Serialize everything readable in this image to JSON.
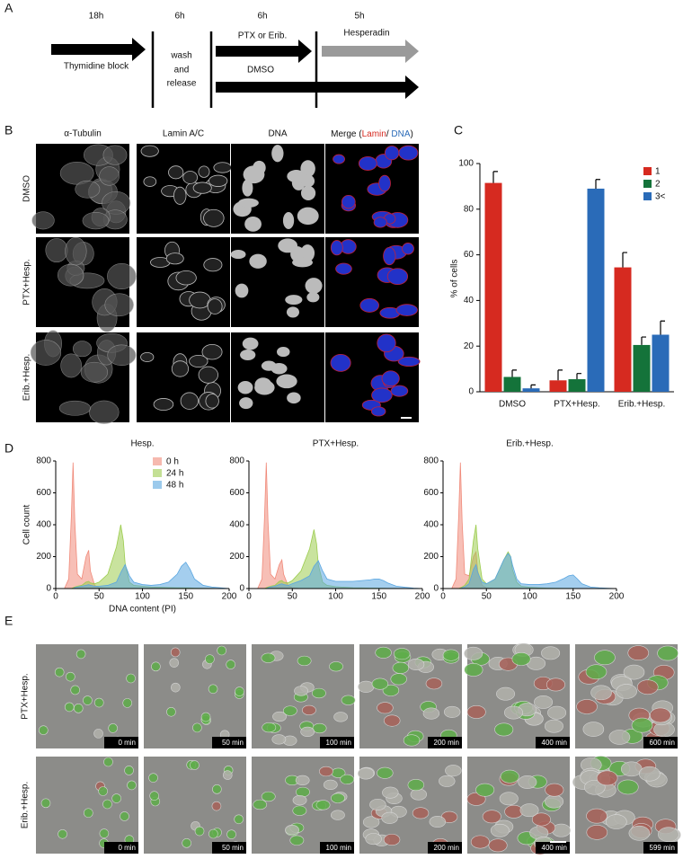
{
  "panel_labels": [
    "A",
    "B",
    "C",
    "D",
    "E"
  ],
  "timeline": {
    "durations": [
      "18h",
      "6h",
      "6h",
      "5h"
    ],
    "thymidine": "Thymidine block",
    "wash": [
      "wash",
      "and",
      "release"
    ],
    "treatment": "PTX or Erib.",
    "hesperadin": "Hesperadin",
    "control": "DMSO"
  },
  "microscopy": {
    "columns": [
      "α-Tubulin",
      "Lamin A/C",
      "DNA"
    ],
    "merge": [
      "Merge (",
      "Lamin",
      "/ ",
      "DNA",
      ")"
    ],
    "rows": [
      "DMSO",
      "PTX+Hesp.",
      "Erib.+Hesp."
    ]
  },
  "time_lapse": {
    "rows": [
      "PTX+Hesp.",
      "Erib.+Hesp."
    ],
    "times": [
      [
        "0 min",
        "50 min",
        "100 min",
        "200 min",
        "400 min",
        "600 min"
      ],
      [
        "0 min",
        "50 min",
        "100 min",
        "200 min",
        "400 min",
        "599 min"
      ]
    ]
  },
  "chart_data": [
    {
      "type": "bar",
      "categories": [
        "DMSO",
        "PTX+Hesp.",
        "Erib.+Hesp."
      ],
      "ylabel": "% of cells",
      "ylim": [
        0,
        100
      ],
      "yticks": [
        0,
        20,
        40,
        60,
        80,
        100
      ],
      "legend": "upper right",
      "series": [
        {
          "name": "1",
          "color": "#d62a20",
          "values": [
            91.5,
            5,
            54.5
          ],
          "errors": [
            5,
            4.5,
            6.5
          ]
        },
        {
          "name": "2",
          "color": "#14733a",
          "values": [
            6.5,
            5.5,
            20.5
          ],
          "errors": [
            3,
            2.5,
            3.5
          ]
        },
        {
          "name": "3<",
          "color": "#2a6bb8",
          "values": [
            1.5,
            89,
            25
          ],
          "errors": [
            1.5,
            4,
            6
          ]
        }
      ]
    },
    {
      "type": "area",
      "title": "Hesp.",
      "xlabel": "DNA content (PI)",
      "ylabel": "Cell count",
      "x": [
        10,
        15,
        18,
        20,
        22,
        25,
        30,
        35,
        38,
        40,
        45,
        50,
        60,
        70,
        75,
        78,
        80,
        85,
        90,
        100,
        110,
        120,
        130,
        140,
        145,
        150,
        155,
        160,
        170,
        180,
        190,
        200
      ],
      "xlim": [
        0,
        200
      ],
      "xticks": [
        0,
        50,
        100,
        150,
        200
      ],
      "ylim": [
        0,
        800
      ],
      "yticks": [
        0,
        200,
        400,
        600,
        800
      ],
      "legend": "upper right",
      "series": [
        {
          "name": "0 h",
          "color": "#f08a7a",
          "values": [
            0,
            60,
            450,
            790,
            420,
            90,
            60,
            200,
            240,
            110,
            20,
            5,
            0,
            0,
            0,
            0,
            0,
            0,
            0,
            0,
            0,
            0,
            0,
            0,
            0,
            0,
            0,
            0,
            0,
            0,
            0,
            0
          ]
        },
        {
          "name": "24 h",
          "color": "#9ccc4e",
          "values": [
            0,
            0,
            0,
            5,
            10,
            15,
            20,
            40,
            45,
            35,
            30,
            40,
            90,
            260,
            400,
            300,
            160,
            40,
            20,
            15,
            10,
            8,
            6,
            5,
            5,
            5,
            4,
            3,
            2,
            1,
            0,
            0
          ]
        },
        {
          "name": "48 h",
          "color": "#5aa6e0",
          "values": [
            0,
            0,
            0,
            0,
            5,
            10,
            15,
            20,
            25,
            20,
            15,
            15,
            20,
            40,
            100,
            130,
            150,
            80,
            40,
            25,
            20,
            25,
            40,
            90,
            140,
            165,
            120,
            60,
            20,
            10,
            5,
            0
          ]
        }
      ]
    },
    {
      "type": "area",
      "title": "PTX+Hesp.",
      "x": [
        10,
        15,
        18,
        20,
        22,
        25,
        30,
        35,
        38,
        40,
        45,
        50,
        60,
        70,
        75,
        78,
        80,
        85,
        90,
        100,
        110,
        120,
        130,
        140,
        145,
        150,
        155,
        160,
        170,
        180,
        190,
        200
      ],
      "xlim": [
        0,
        200
      ],
      "xticks": [
        0,
        50,
        100,
        150,
        200
      ],
      "ylim": [
        0,
        800
      ],
      "yticks": [
        0,
        200,
        400,
        600,
        800
      ],
      "series": [
        {
          "color": "#f08a7a",
          "values": [
            0,
            60,
            450,
            790,
            420,
            90,
            60,
            150,
            180,
            90,
            20,
            5,
            0,
            0,
            0,
            0,
            0,
            0,
            0,
            0,
            0,
            0,
            0,
            0,
            0,
            0,
            0,
            0,
            0,
            0,
            0,
            0
          ]
        },
        {
          "color": "#9ccc4e",
          "values": [
            0,
            0,
            0,
            5,
            10,
            15,
            20,
            45,
            50,
            40,
            35,
            50,
            110,
            250,
            370,
            280,
            150,
            40,
            20,
            12,
            8,
            5,
            4,
            3,
            3,
            2,
            2,
            1,
            1,
            0,
            0,
            0
          ]
        },
        {
          "color": "#5aa6e0",
          "values": [
            0,
            0,
            0,
            0,
            5,
            10,
            15,
            25,
            30,
            25,
            20,
            30,
            50,
            80,
            140,
            160,
            175,
            110,
            60,
            45,
            45,
            45,
            50,
            55,
            60,
            60,
            50,
            35,
            15,
            8,
            3,
            0
          ]
        }
      ]
    },
    {
      "type": "area",
      "title": "Erib.+Hesp.",
      "x": [
        10,
        15,
        18,
        20,
        22,
        25,
        30,
        35,
        38,
        40,
        45,
        50,
        60,
        70,
        75,
        78,
        80,
        85,
        90,
        100,
        110,
        120,
        130,
        140,
        145,
        150,
        155,
        160,
        170,
        180,
        190,
        200
      ],
      "xlim": [
        0,
        200
      ],
      "xticks": [
        0,
        50,
        100,
        150,
        200
      ],
      "ylim": [
        0,
        800
      ],
      "yticks": [
        0,
        200,
        400,
        600,
        800
      ],
      "series": [
        {
          "color": "#f08a7a",
          "values": [
            0,
            60,
            450,
            790,
            420,
            90,
            80,
            200,
            230,
            110,
            20,
            5,
            0,
            0,
            0,
            0,
            0,
            0,
            0,
            0,
            0,
            0,
            0,
            0,
            0,
            0,
            0,
            0,
            0,
            0,
            0,
            0
          ]
        },
        {
          "color": "#9ccc4e",
          "values": [
            0,
            0,
            0,
            5,
            10,
            20,
            60,
            300,
            400,
            250,
            60,
            30,
            60,
            180,
            230,
            200,
            120,
            40,
            15,
            8,
            5,
            3,
            2,
            1,
            1,
            1,
            0,
            0,
            0,
            0,
            0,
            0
          ]
        },
        {
          "color": "#5aa6e0",
          "values": [
            0,
            0,
            0,
            0,
            5,
            10,
            30,
            120,
            150,
            100,
            40,
            30,
            60,
            180,
            220,
            200,
            150,
            60,
            30,
            25,
            25,
            30,
            40,
            65,
            80,
            85,
            60,
            30,
            10,
            5,
            2,
            0
          ]
        }
      ]
    }
  ]
}
